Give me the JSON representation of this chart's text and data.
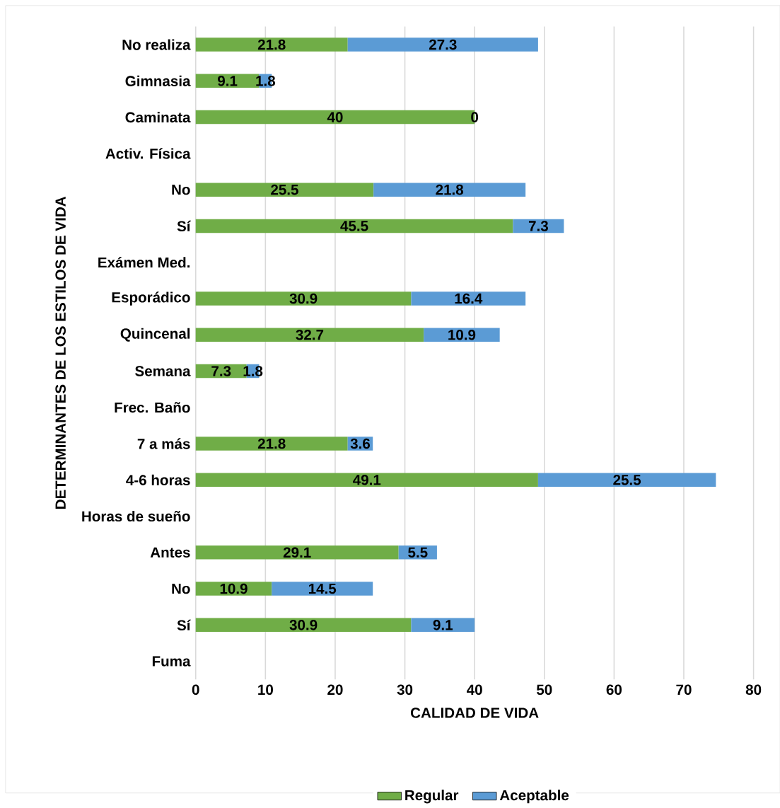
{
  "chart_data": {
    "type": "bar",
    "orientation": "horizontal",
    "stacked": true,
    "xlabel": "CALIDAD DE VIDA",
    "ylabel": "DETERMINANTES DE LOS ESTILOS DE VIDA",
    "categories": [
      "No realiza",
      "Gimnasia",
      "Caminata",
      "Activ. Física",
      "No",
      "Sí",
      "Exámen Med.",
      "Esporádico",
      "Quincenal",
      "Semana",
      "Frec. Baño",
      "7 a más",
      "4-6 horas",
      "Horas de sueño",
      "Antes",
      "No",
      "Sí",
      "Fuma"
    ],
    "series": [
      {
        "name": "Regular",
        "color": "#70ad47",
        "values": [
          21.8,
          9.1,
          40,
          null,
          25.5,
          45.5,
          null,
          30.9,
          32.7,
          7.3,
          null,
          21.8,
          49.1,
          null,
          29.1,
          10.9,
          30.9,
          null
        ]
      },
      {
        "name": "Aceptable",
        "color": "#5b9bd5",
        "values": [
          27.3,
          1.8,
          0,
          null,
          21.8,
          7.3,
          null,
          16.4,
          10.9,
          1.8,
          null,
          3.6,
          25.5,
          null,
          5.5,
          14.5,
          9.1,
          null
        ]
      }
    ],
    "xlim": [
      0,
      80
    ],
    "xticks": [
      0,
      10,
      20,
      30,
      40,
      50,
      60,
      70,
      80
    ],
    "grid": "x",
    "legend": "bottom",
    "data_labels": true
  }
}
